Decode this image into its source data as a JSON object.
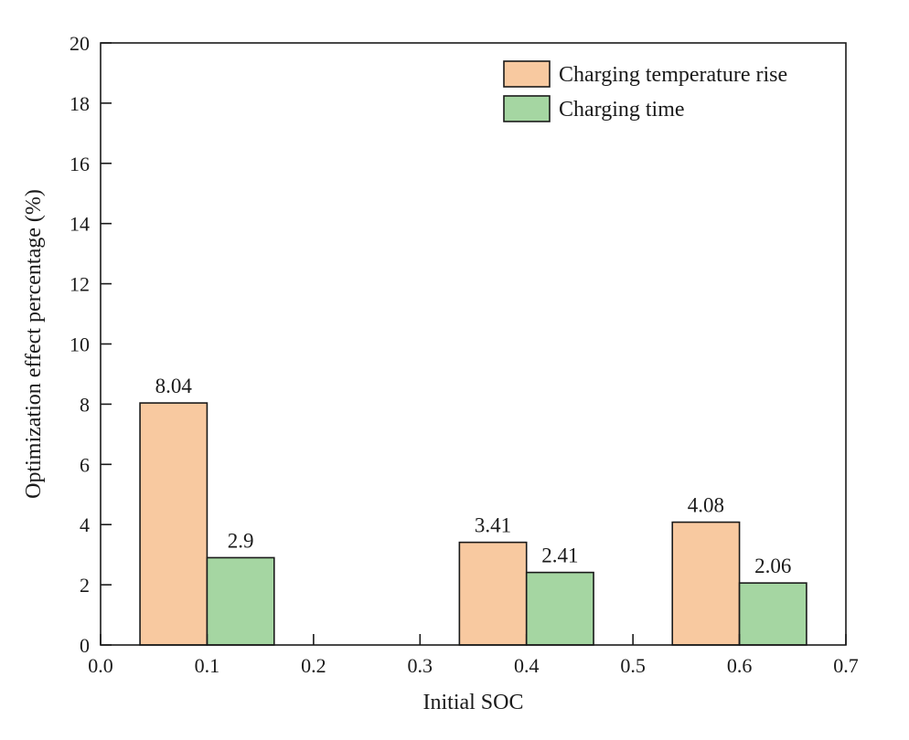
{
  "chart_data": {
    "type": "bar",
    "title": "",
    "xlabel": "Initial SOC",
    "ylabel": "Optimization effect percentage (%)",
    "xlim": [
      0.0,
      0.7
    ],
    "ylim": [
      0,
      20
    ],
    "x_ticks": [
      0.0,
      0.1,
      0.2,
      0.3,
      0.4,
      0.5,
      0.6,
      0.7
    ],
    "x_tick_labels": [
      "0.0",
      "0.1",
      "0.2",
      "0.3",
      "0.4",
      "0.5",
      "0.6",
      "0.7"
    ],
    "y_ticks": [
      0,
      2,
      4,
      6,
      8,
      10,
      12,
      14,
      16,
      18,
      20
    ],
    "y_tick_labels": [
      "0",
      "2",
      "4",
      "6",
      "8",
      "10",
      "12",
      "14",
      "16",
      "18",
      "20"
    ],
    "x": [
      0.1,
      0.4,
      0.6
    ],
    "bar_width": 0.063,
    "grid": false,
    "legend_position": "top-right",
    "series": [
      {
        "name": "Charging temperature rise",
        "color": "#f8c9a0",
        "values": [
          8.04,
          3.41,
          4.08
        ],
        "value_labels": [
          "8.04",
          "3.41",
          "4.08"
        ]
      },
      {
        "name": "Charging time",
        "color": "#a5d6a2",
        "values": [
          2.9,
          2.41,
          2.06
        ],
        "value_labels": [
          "2.9",
          "2.41",
          "2.06"
        ]
      }
    ]
  }
}
